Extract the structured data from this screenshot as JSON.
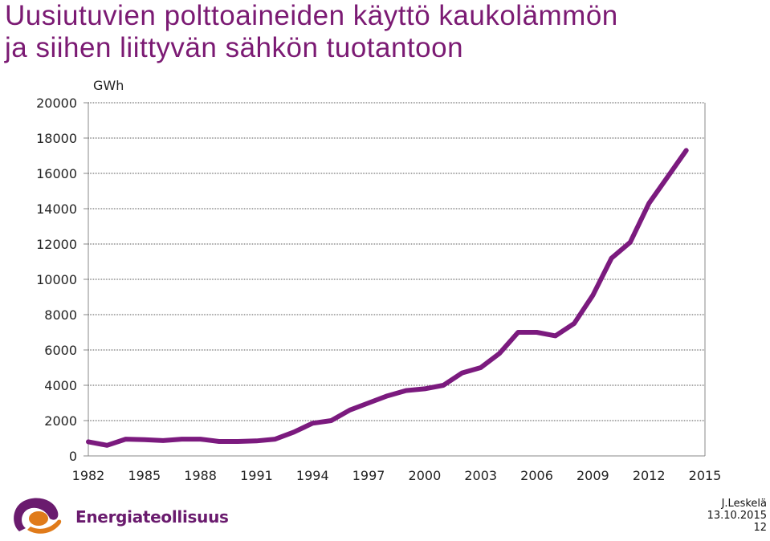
{
  "title_line1": "Uusiutuvien polttoaineiden käyttö kaukolämmön",
  "title_line2": "ja siihen liittyvän sähkön tuotantoon",
  "brand": {
    "name": "Energiateollisuus",
    "purple": "#6a1b6e",
    "orange": "#e07b1a"
  },
  "footer": {
    "author": "J.Leskelä",
    "date": "13.10.2015",
    "page": "12"
  },
  "chart_data": {
    "type": "line",
    "ylabel": "GWh",
    "ylim": [
      0,
      20000
    ],
    "xlim": [
      1982,
      2015
    ],
    "yticks": [
      0,
      2000,
      4000,
      6000,
      8000,
      10000,
      12000,
      14000,
      16000,
      18000,
      20000
    ],
    "xticks": [
      1982,
      1985,
      1988,
      1991,
      1994,
      1997,
      2000,
      2003,
      2006,
      2009,
      2012,
      2015
    ],
    "grid": true,
    "line_color": "#7b1a7e",
    "series": [
      {
        "x": [
          1982,
          1983,
          1984,
          1985,
          1986,
          1987,
          1988,
          1989,
          1990,
          1991,
          1992,
          1993,
          1994,
          1995,
          1996,
          1997,
          1998,
          1999,
          2000,
          2001,
          2002,
          2003,
          2004,
          2005,
          2006,
          2007,
          2008,
          2009,
          2010,
          2011,
          2012,
          2013,
          2014
        ],
        "values": [
          800,
          600,
          950,
          920,
          870,
          950,
          950,
          820,
          820,
          850,
          950,
          1350,
          1850,
          2000,
          2600,
          3000,
          3400,
          3700,
          3800,
          4000,
          4700,
          5000,
          5800,
          7000,
          7000,
          6800,
          7500,
          9100,
          11200,
          12100,
          14300,
          15800,
          17300
        ]
      }
    ]
  }
}
